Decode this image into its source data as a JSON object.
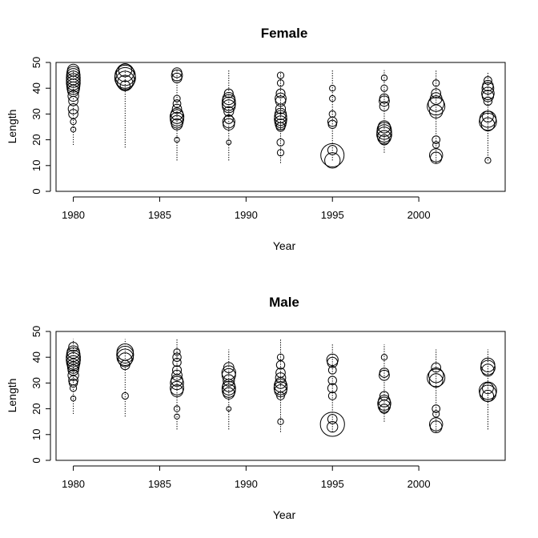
{
  "chart_data": [
    {
      "type": "scatter",
      "subtype": "bubble",
      "title": "Female",
      "xlabel": "Year",
      "ylabel": "Length",
      "xlim": [
        1979,
        2005
      ],
      "ylim": [
        0,
        50
      ],
      "xticks": [
        1980,
        1985,
        1990,
        1995,
        2000
      ],
      "yticks": [
        0,
        10,
        20,
        30,
        40,
        50
      ],
      "grid": false,
      "legend": "none",
      "stalks": [
        {
          "x": 1980,
          "y_range": [
            18,
            47
          ]
        },
        {
          "x": 1983,
          "y_range": [
            17,
            47
          ]
        },
        {
          "x": 1986,
          "y_range": [
            12,
            47
          ]
        },
        {
          "x": 1989,
          "y_range": [
            12,
            47
          ]
        },
        {
          "x": 1992,
          "y_range": [
            11,
            46
          ]
        },
        {
          "x": 1995,
          "y_range": [
            12,
            47
          ]
        },
        {
          "x": 1998,
          "y_range": [
            15,
            47
          ]
        },
        {
          "x": 2001,
          "y_range": [
            11,
            47
          ]
        },
        {
          "x": 2004,
          "y_range": [
            12,
            46
          ]
        }
      ],
      "points": [
        {
          "x": 1980,
          "y": 47,
          "size": 0.32
        },
        {
          "x": 1980,
          "y": 46,
          "size": 0.38
        },
        {
          "x": 1980,
          "y": 45,
          "size": 0.42
        },
        {
          "x": 1980,
          "y": 44,
          "size": 0.44
        },
        {
          "x": 1980,
          "y": 43,
          "size": 0.44
        },
        {
          "x": 1980,
          "y": 42,
          "size": 0.44
        },
        {
          "x": 1980,
          "y": 41,
          "size": 0.4
        },
        {
          "x": 1980,
          "y": 40,
          "size": 0.36
        },
        {
          "x": 1980,
          "y": 39,
          "size": 0.3
        },
        {
          "x": 1980,
          "y": 37,
          "size": 0.26
        },
        {
          "x": 1980,
          "y": 35,
          "size": 0.2
        },
        {
          "x": 1980,
          "y": 32,
          "size": 0.24
        },
        {
          "x": 1980,
          "y": 30,
          "size": 0.2
        },
        {
          "x": 1980,
          "y": 27,
          "size": 0.08
        },
        {
          "x": 1980,
          "y": 24,
          "size": 0.06
        },
        {
          "x": 1983,
          "y": 46,
          "size": 0.72
        },
        {
          "x": 1983,
          "y": 45,
          "size": 0.95
        },
        {
          "x": 1983,
          "y": 44,
          "size": 1.0
        },
        {
          "x": 1983,
          "y": 43,
          "size": 0.8
        },
        {
          "x": 1983,
          "y": 42,
          "size": 0.55
        },
        {
          "x": 1983,
          "y": 41,
          "size": 0.22
        },
        {
          "x": 1983,
          "y": 47,
          "size": 0.4
        },
        {
          "x": 1986,
          "y": 46,
          "size": 0.22
        },
        {
          "x": 1986,
          "y": 45,
          "size": 0.28
        },
        {
          "x": 1986,
          "y": 44,
          "size": 0.22
        },
        {
          "x": 1986,
          "y": 36,
          "size": 0.1
        },
        {
          "x": 1986,
          "y": 34,
          "size": 0.14
        },
        {
          "x": 1986,
          "y": 32,
          "size": 0.2
        },
        {
          "x": 1986,
          "y": 30,
          "size": 0.34
        },
        {
          "x": 1986,
          "y": 29,
          "size": 0.44
        },
        {
          "x": 1986,
          "y": 28,
          "size": 0.42
        },
        {
          "x": 1986,
          "y": 27,
          "size": 0.36
        },
        {
          "x": 1986,
          "y": 26,
          "size": 0.28
        },
        {
          "x": 1986,
          "y": 20,
          "size": 0.06
        },
        {
          "x": 1989,
          "y": 38,
          "size": 0.18
        },
        {
          "x": 1989,
          "y": 36,
          "size": 0.34
        },
        {
          "x": 1989,
          "y": 35,
          "size": 0.4
        },
        {
          "x": 1989,
          "y": 34,
          "size": 0.42
        },
        {
          "x": 1989,
          "y": 33,
          "size": 0.38
        },
        {
          "x": 1989,
          "y": 31,
          "size": 0.22
        },
        {
          "x": 1989,
          "y": 28,
          "size": 0.18
        },
        {
          "x": 1989,
          "y": 27,
          "size": 0.34
        },
        {
          "x": 1989,
          "y": 26,
          "size": 0.3
        },
        {
          "x": 1989,
          "y": 19,
          "size": 0.05
        },
        {
          "x": 1992,
          "y": 45,
          "size": 0.1
        },
        {
          "x": 1992,
          "y": 42,
          "size": 0.1
        },
        {
          "x": 1992,
          "y": 38,
          "size": 0.18
        },
        {
          "x": 1992,
          "y": 36,
          "size": 0.28
        },
        {
          "x": 1992,
          "y": 35,
          "size": 0.24
        },
        {
          "x": 1992,
          "y": 32,
          "size": 0.22
        },
        {
          "x": 1992,
          "y": 30,
          "size": 0.3
        },
        {
          "x": 1992,
          "y": 29,
          "size": 0.34
        },
        {
          "x": 1992,
          "y": 28,
          "size": 0.36
        },
        {
          "x": 1992,
          "y": 27,
          "size": 0.32
        },
        {
          "x": 1992,
          "y": 26,
          "size": 0.26
        },
        {
          "x": 1992,
          "y": 25,
          "size": 0.18
        },
        {
          "x": 1992,
          "y": 19,
          "size": 0.12
        },
        {
          "x": 1992,
          "y": 15,
          "size": 0.1
        },
        {
          "x": 1995,
          "y": 40,
          "size": 0.08
        },
        {
          "x": 1995,
          "y": 36,
          "size": 0.08
        },
        {
          "x": 1995,
          "y": 30,
          "size": 0.1
        },
        {
          "x": 1995,
          "y": 27,
          "size": 0.2
        },
        {
          "x": 1995,
          "y": 26,
          "size": 0.16
        },
        {
          "x": 1995,
          "y": 16,
          "size": 0.2
        },
        {
          "x": 1995,
          "y": 14,
          "size": 1.25
        },
        {
          "x": 1995,
          "y": 12,
          "size": 0.55
        },
        {
          "x": 1998,
          "y": 44,
          "size": 0.08
        },
        {
          "x": 1998,
          "y": 40,
          "size": 0.1
        },
        {
          "x": 1998,
          "y": 36,
          "size": 0.2
        },
        {
          "x": 1998,
          "y": 35,
          "size": 0.24
        },
        {
          "x": 1998,
          "y": 33,
          "size": 0.2
        },
        {
          "x": 1998,
          "y": 25,
          "size": 0.34
        },
        {
          "x": 1998,
          "y": 24,
          "size": 0.46
        },
        {
          "x": 1998,
          "y": 23,
          "size": 0.5
        },
        {
          "x": 1998,
          "y": 22,
          "size": 0.52
        },
        {
          "x": 1998,
          "y": 21,
          "size": 0.42
        },
        {
          "x": 1998,
          "y": 20,
          "size": 0.24
        },
        {
          "x": 2001,
          "y": 42,
          "size": 0.1
        },
        {
          "x": 2001,
          "y": 38,
          "size": 0.2
        },
        {
          "x": 2001,
          "y": 36,
          "size": 0.32
        },
        {
          "x": 2001,
          "y": 34,
          "size": 0.56
        },
        {
          "x": 2001,
          "y": 33,
          "size": 0.72
        },
        {
          "x": 2001,
          "y": 31,
          "size": 0.4
        },
        {
          "x": 2001,
          "y": 20,
          "size": 0.14
        },
        {
          "x": 2001,
          "y": 18,
          "size": 0.1
        },
        {
          "x": 2001,
          "y": 14,
          "size": 0.4
        },
        {
          "x": 2001,
          "y": 13,
          "size": 0.3
        },
        {
          "x": 2004,
          "y": 43,
          "size": 0.14
        },
        {
          "x": 2004,
          "y": 41,
          "size": 0.26
        },
        {
          "x": 2004,
          "y": 40,
          "size": 0.32
        },
        {
          "x": 2004,
          "y": 38,
          "size": 0.36
        },
        {
          "x": 2004,
          "y": 37,
          "size": 0.3
        },
        {
          "x": 2004,
          "y": 35,
          "size": 0.16
        },
        {
          "x": 2004,
          "y": 29,
          "size": 0.28
        },
        {
          "x": 2004,
          "y": 28,
          "size": 0.62
        },
        {
          "x": 2004,
          "y": 27,
          "size": 0.68
        },
        {
          "x": 2004,
          "y": 26,
          "size": 0.4
        },
        {
          "x": 2004,
          "y": 12,
          "size": 0.08
        }
      ]
    },
    {
      "type": "scatter",
      "subtype": "bubble",
      "title": "Male",
      "xlabel": "Year",
      "ylabel": "Length",
      "xlim": [
        1979,
        2005
      ],
      "ylim": [
        0,
        50
      ],
      "xticks": [
        1980,
        1985,
        1990,
        1995,
        2000
      ],
      "yticks": [
        0,
        10,
        20,
        30,
        40,
        50
      ],
      "grid": false,
      "legend": "none",
      "stalks": [
        {
          "x": 1980,
          "y_range": [
            18,
            47
          ]
        },
        {
          "x": 1983,
          "y_range": [
            17,
            47
          ]
        },
        {
          "x": 1986,
          "y_range": [
            12,
            47
          ]
        },
        {
          "x": 1989,
          "y_range": [
            12,
            43
          ]
        },
        {
          "x": 1992,
          "y_range": [
            11,
            47
          ]
        },
        {
          "x": 1995,
          "y_range": [
            11,
            45
          ]
        },
        {
          "x": 1998,
          "y_range": [
            15,
            45
          ]
        },
        {
          "x": 2001,
          "y_range": [
            11,
            43
          ]
        },
        {
          "x": 2004,
          "y_range": [
            12,
            43
          ]
        }
      ],
      "points": [
        {
          "x": 1980,
          "y": 44,
          "size": 0.2
        },
        {
          "x": 1980,
          "y": 42,
          "size": 0.36
        },
        {
          "x": 1980,
          "y": 41,
          "size": 0.42
        },
        {
          "x": 1980,
          "y": 40,
          "size": 0.46
        },
        {
          "x": 1980,
          "y": 39,
          "size": 0.46
        },
        {
          "x": 1980,
          "y": 38,
          "size": 0.42
        },
        {
          "x": 1980,
          "y": 37,
          "size": 0.34
        },
        {
          "x": 1980,
          "y": 36,
          "size": 0.3
        },
        {
          "x": 1980,
          "y": 35,
          "size": 0.26
        },
        {
          "x": 1980,
          "y": 33,
          "size": 0.26
        },
        {
          "x": 1980,
          "y": 31,
          "size": 0.2
        },
        {
          "x": 1980,
          "y": 30,
          "size": 0.16
        },
        {
          "x": 1980,
          "y": 28,
          "size": 0.1
        },
        {
          "x": 1980,
          "y": 24,
          "size": 0.06
        },
        {
          "x": 1983,
          "y": 42,
          "size": 0.62
        },
        {
          "x": 1983,
          "y": 41,
          "size": 0.66
        },
        {
          "x": 1983,
          "y": 40,
          "size": 0.62
        },
        {
          "x": 1983,
          "y": 39,
          "size": 0.44
        },
        {
          "x": 1983,
          "y": 37,
          "size": 0.2
        },
        {
          "x": 1983,
          "y": 25,
          "size": 0.1
        },
        {
          "x": 1986,
          "y": 42,
          "size": 0.1
        },
        {
          "x": 1986,
          "y": 40,
          "size": 0.16
        },
        {
          "x": 1986,
          "y": 38,
          "size": 0.16
        },
        {
          "x": 1986,
          "y": 35,
          "size": 0.18
        },
        {
          "x": 1986,
          "y": 33,
          "size": 0.24
        },
        {
          "x": 1986,
          "y": 31,
          "size": 0.32
        },
        {
          "x": 1986,
          "y": 30,
          "size": 0.4
        },
        {
          "x": 1986,
          "y": 28,
          "size": 0.42
        },
        {
          "x": 1986,
          "y": 27,
          "size": 0.34
        },
        {
          "x": 1986,
          "y": 20,
          "size": 0.08
        },
        {
          "x": 1986,
          "y": 17,
          "size": 0.06
        },
        {
          "x": 1989,
          "y": 36,
          "size": 0.24
        },
        {
          "x": 1989,
          "y": 34,
          "size": 0.44
        },
        {
          "x": 1989,
          "y": 33,
          "size": 0.42
        },
        {
          "x": 1989,
          "y": 31,
          "size": 0.3
        },
        {
          "x": 1989,
          "y": 29,
          "size": 0.34
        },
        {
          "x": 1989,
          "y": 28,
          "size": 0.42
        },
        {
          "x": 1989,
          "y": 27,
          "size": 0.4
        },
        {
          "x": 1989,
          "y": 26,
          "size": 0.3
        },
        {
          "x": 1989,
          "y": 20,
          "size": 0.05
        },
        {
          "x": 1992,
          "y": 40,
          "size": 0.1
        },
        {
          "x": 1992,
          "y": 37,
          "size": 0.16
        },
        {
          "x": 1992,
          "y": 34,
          "size": 0.2
        },
        {
          "x": 1992,
          "y": 32,
          "size": 0.24
        },
        {
          "x": 1992,
          "y": 30,
          "size": 0.28
        },
        {
          "x": 1992,
          "y": 29,
          "size": 0.38
        },
        {
          "x": 1992,
          "y": 28,
          "size": 0.4
        },
        {
          "x": 1992,
          "y": 27,
          "size": 0.34
        },
        {
          "x": 1992,
          "y": 25,
          "size": 0.14
        },
        {
          "x": 1992,
          "y": 15,
          "size": 0.08
        },
        {
          "x": 1995,
          "y": 39,
          "size": 0.3
        },
        {
          "x": 1995,
          "y": 38,
          "size": 0.24
        },
        {
          "x": 1995,
          "y": 35,
          "size": 0.14
        },
        {
          "x": 1995,
          "y": 31,
          "size": 0.16
        },
        {
          "x": 1995,
          "y": 28,
          "size": 0.2
        },
        {
          "x": 1995,
          "y": 25,
          "size": 0.14
        },
        {
          "x": 1995,
          "y": 16,
          "size": 0.2
        },
        {
          "x": 1995,
          "y": 14,
          "size": 1.35
        },
        {
          "x": 1995,
          "y": 13,
          "size": 0.26
        },
        {
          "x": 1998,
          "y": 40,
          "size": 0.08
        },
        {
          "x": 1998,
          "y": 34,
          "size": 0.2
        },
        {
          "x": 1998,
          "y": 33,
          "size": 0.24
        },
        {
          "x": 1998,
          "y": 25,
          "size": 0.18
        },
        {
          "x": 1998,
          "y": 23,
          "size": 0.32
        },
        {
          "x": 1998,
          "y": 22,
          "size": 0.4
        },
        {
          "x": 1998,
          "y": 21,
          "size": 0.34
        },
        {
          "x": 1998,
          "y": 20,
          "size": 0.2
        },
        {
          "x": 2001,
          "y": 36,
          "size": 0.2
        },
        {
          "x": 2001,
          "y": 33,
          "size": 0.5
        },
        {
          "x": 2001,
          "y": 32,
          "size": 0.72
        },
        {
          "x": 2001,
          "y": 31,
          "size": 0.42
        },
        {
          "x": 2001,
          "y": 20,
          "size": 0.14
        },
        {
          "x": 2001,
          "y": 18,
          "size": 0.1
        },
        {
          "x": 2001,
          "y": 14,
          "size": 0.4
        },
        {
          "x": 2001,
          "y": 13,
          "size": 0.32
        },
        {
          "x": 2004,
          "y": 37,
          "size": 0.44
        },
        {
          "x": 2004,
          "y": 36,
          "size": 0.48
        },
        {
          "x": 2004,
          "y": 35,
          "size": 0.34
        },
        {
          "x": 2004,
          "y": 28,
          "size": 0.28
        },
        {
          "x": 2004,
          "y": 27,
          "size": 0.7
        },
        {
          "x": 2004,
          "y": 26,
          "size": 0.62
        },
        {
          "x": 2004,
          "y": 25,
          "size": 0.3
        }
      ]
    }
  ]
}
